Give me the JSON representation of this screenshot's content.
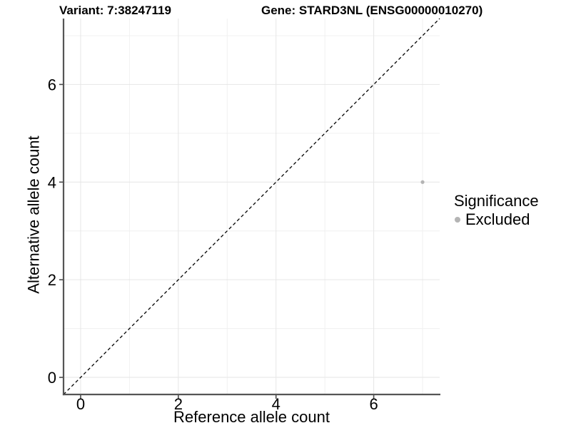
{
  "header": {
    "variant_title": "Variant: 7:38247119",
    "gene_title": "Gene: STARD3NL (ENSG00000010270)"
  },
  "legend": {
    "title": "Significance",
    "position": "right",
    "items": [
      {
        "label": "Excluded",
        "marker": "circle-icon",
        "color": "#b4b4b4"
      }
    ]
  },
  "chart_data": {
    "type": "scatter",
    "title": "Variant: 7:38247119  |  Gene: STARD3NL (ENSG00000010270)",
    "xlabel": "Reference allele count",
    "ylabel": "Alternative allele count",
    "xlim": [
      -0.35,
      7.35
    ],
    "ylim": [
      -0.35,
      7.35
    ],
    "x_ticks": [
      0,
      2,
      4,
      6
    ],
    "y_ticks": [
      0,
      2,
      4,
      6
    ],
    "x_minor_ticks": [
      1,
      3,
      5,
      7
    ],
    "y_minor_ticks": [
      1,
      3,
      5,
      7
    ],
    "grid": true,
    "legend_position": "right",
    "series": [
      {
        "name": "Excluded",
        "points": [
          {
            "x": 7,
            "y": 4
          }
        ],
        "color": "#b4b4b4",
        "point_radius": 2.6
      }
    ],
    "reference_line": {
      "type": "identity",
      "equation": "y = x",
      "from": [
        -0.35,
        -0.35
      ],
      "to": [
        7.35,
        7.35
      ],
      "style": "dashed",
      "color": "#000000"
    },
    "colors": {
      "background": "#ffffff",
      "axis_line": "#555555",
      "tick_mark": "#4a4a4a",
      "tick_label": "#000000",
      "grid_major": "#e6e6e6",
      "grid_minor": "#f0f0f0",
      "point": "#b4b4b4",
      "reference_line": "#000000"
    }
  }
}
